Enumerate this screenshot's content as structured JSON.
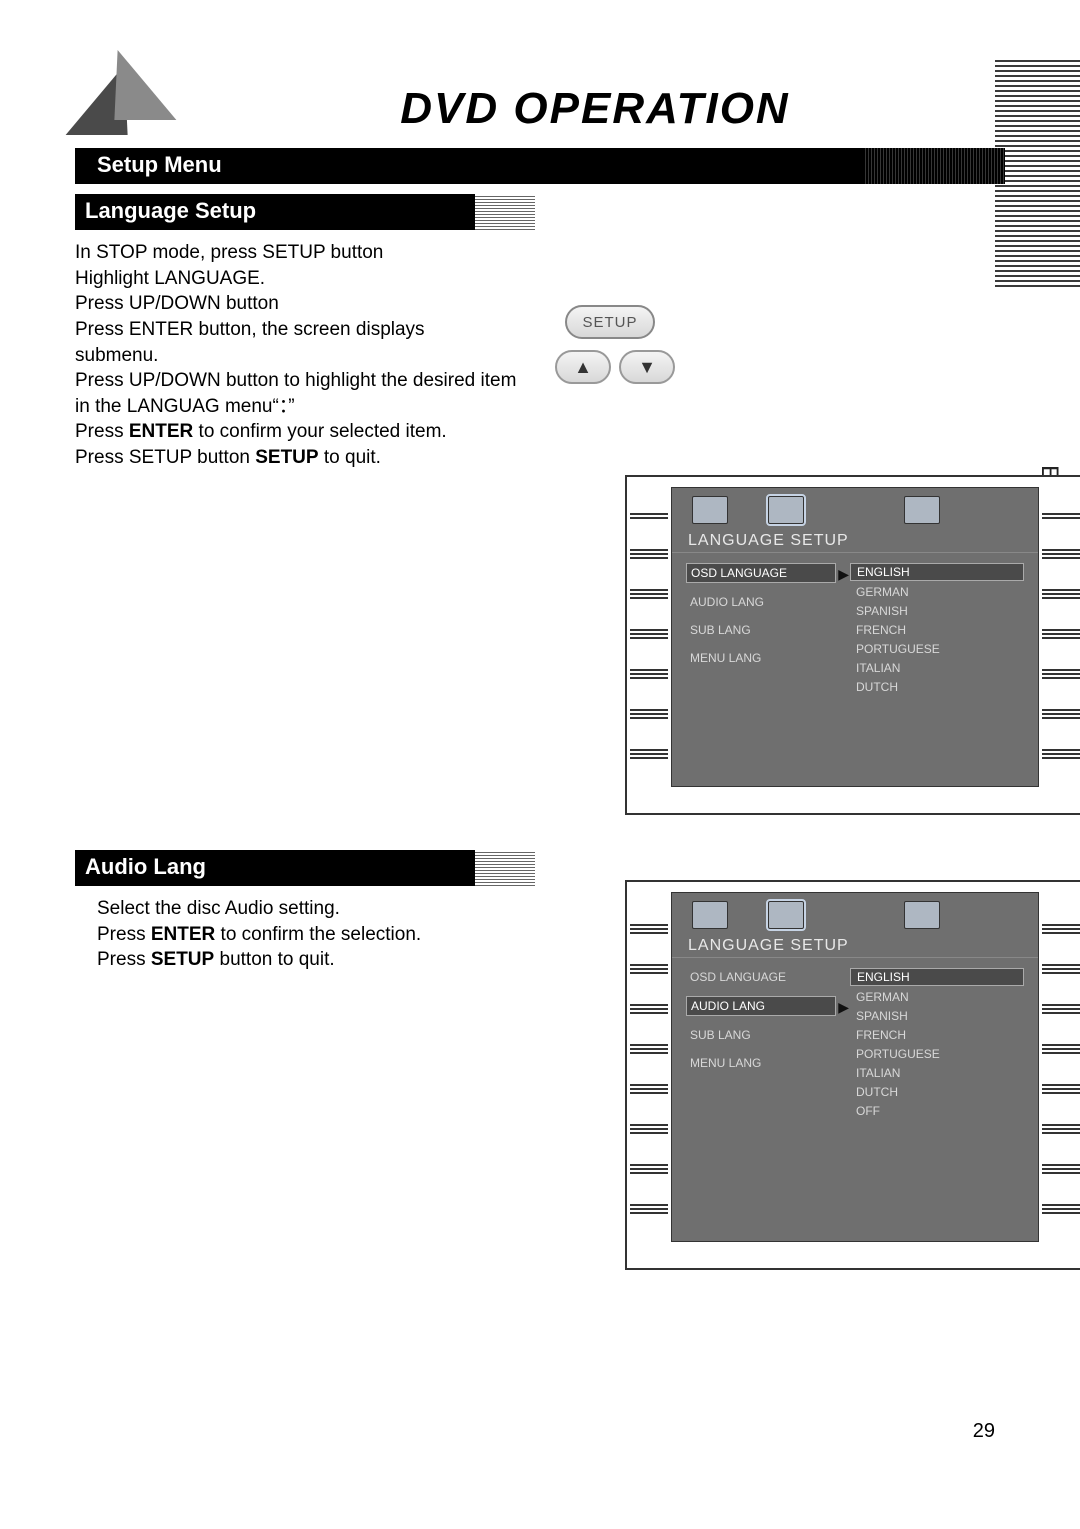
{
  "page": {
    "title": "DVD OPERATION",
    "setup_menu": "Setup Menu",
    "side_language": "English",
    "page_number": "29"
  },
  "buttons": {
    "setup_label": "SETUP",
    "up_glyph": "▲",
    "down_glyph": "▼"
  },
  "section_language": {
    "heading": "Language Setup",
    "line1": "In STOP mode, press SETUP button",
    "line2": "Highlight LANGUAGE.",
    "line3": "Press UP/DOWN button",
    "line4": "Press ENTER button, the screen displays",
    "line5": "submenu.",
    "line6": "Press UP/DOWN button to highlight the desired item",
    "line7": "in the LANGUAG menu“：”",
    "line8a": "Press ",
    "line8b": "ENTER",
    "line8c": " to confirm your selected item.",
    "line9a": "Press SETUP button ",
    "line9b": "SETUP",
    "line9c": " to quit."
  },
  "section_audio": {
    "heading": "Audio Lang",
    "line1": "Select the disc Audio setting.",
    "line2a": "Press  ",
    "line2b": "ENTER",
    "line2c": " to confirm the selection.",
    "line3a": "Press ",
    "line3b": "SETUP",
    "line3c": " button to quit."
  },
  "osd": {
    "title": "LANGUAGE SETUP",
    "left_items": [
      "OSD LANGUAGE",
      "AUDIO LANG",
      "SUB LANG",
      "MENU LANG"
    ],
    "panel1": {
      "selected_left": 0,
      "options": [
        "ENGLISH",
        "GERMAN",
        "SPANISH",
        "FRENCH",
        "PORTUGUESE",
        "ITALIAN",
        "DUTCH"
      ],
      "selected_option": 0
    },
    "panel2": {
      "selected_left": 1,
      "options": [
        "ENGLISH",
        "GERMAN",
        "SPANISH",
        "FRENCH",
        "PORTUGUESE",
        "ITALIAN",
        "DUTCH",
        "OFF"
      ],
      "selected_option": 0
    }
  },
  "colors": {
    "black": "#000000",
    "white": "#ffffff",
    "osd_bg": "#6f6f6f",
    "osd_text": "#d8d8d8",
    "sel_bg": "#4a4a4a"
  }
}
